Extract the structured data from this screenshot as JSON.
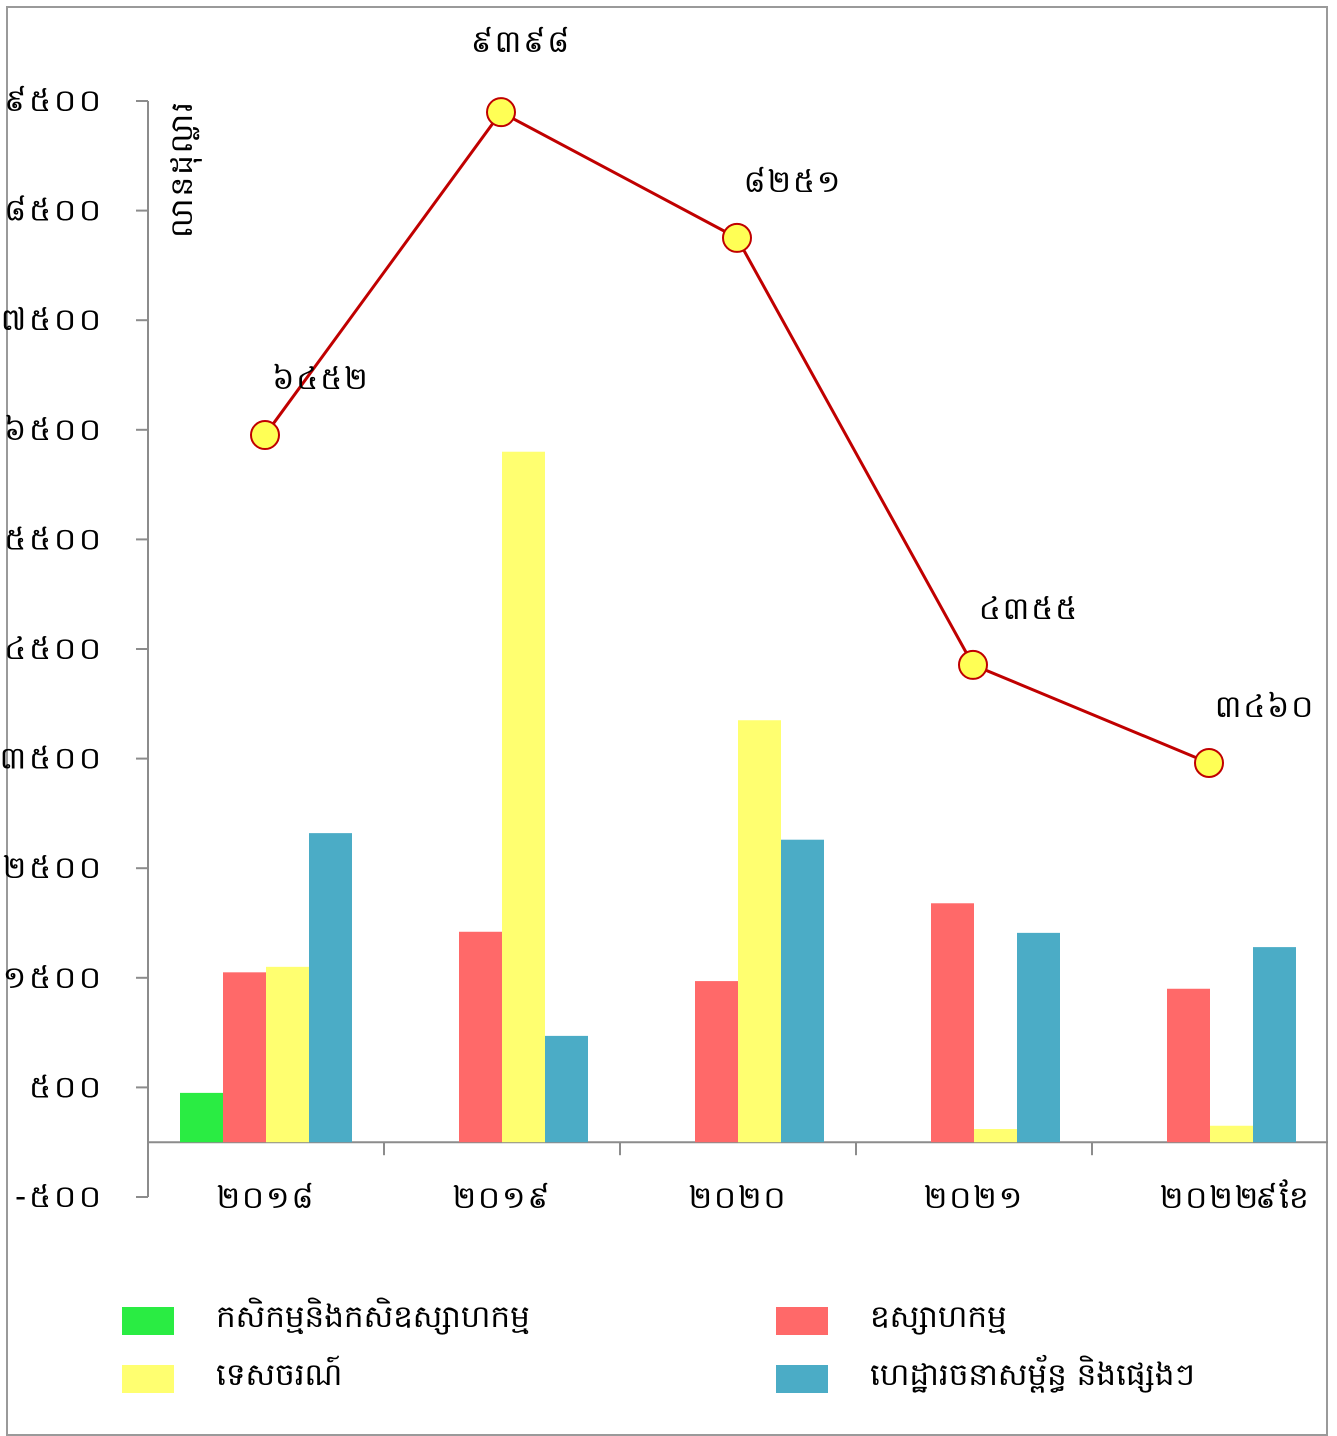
{
  "chart_data": {
    "type": "bar",
    "ylabel": "លានដុល្លារ",
    "ylim": [
      -500,
      9500
    ],
    "yticks": [
      "-៥០០",
      "៥០០",
      "១៥០០",
      "២៥០០",
      "៣៥០០",
      "៤៥០០",
      "៥៥០០",
      "៦៥០០",
      "៧៥០០",
      "៨៥០០",
      "៩៥០០"
    ],
    "ytick_values": [
      -500,
      500,
      1500,
      2500,
      3500,
      4500,
      5500,
      6500,
      7500,
      8500,
      9500
    ],
    "categories": [
      "២០១៨",
      "២០១៩",
      "២០២០",
      "២០២១",
      "២០២២"
    ],
    "category_suffix": "៩ខែ",
    "series": [
      {
        "name": "កសិកម្មនិងកសិឧស្សាហកម្ម",
        "color": "#2aec43",
        "values": [
          450,
          0,
          0,
          0,
          0
        ]
      },
      {
        "name": "ឧស្សាហកម្ម",
        "color": "#ff6969",
        "values": [
          1550,
          1920,
          1470,
          2180,
          1400
        ]
      },
      {
        "name": "ទេសចរណ៍",
        "color": "#ffff70",
        "values": [
          1600,
          6300,
          3850,
          120,
          150
        ]
      },
      {
        "name": "ហេដ្ឋារចនាសម្ព័ន្ធ និងផ្សេងៗ",
        "color": "#4bacc6",
        "values": [
          2820,
          970,
          2760,
          1910,
          1780
        ]
      }
    ],
    "line": {
      "color": "#c00000",
      "marker_color": "#ffff55",
      "values": [
        6452,
        9398,
        8251,
        4355,
        3460
      ],
      "labels": [
        "៦៤៥២",
        "៩៣៩៨",
        "៨២៥១",
        "៤៣៥៥",
        "៣៤៦០"
      ]
    },
    "grid": false,
    "legend_position": "bottom"
  }
}
